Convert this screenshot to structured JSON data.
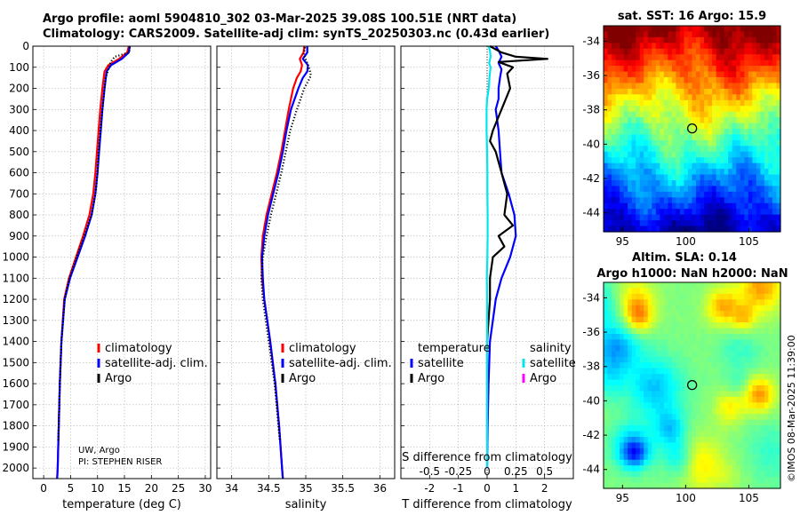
{
  "header": {
    "title_line1": "Argo profile: aoml 5904810_302 03-Mar-2025 39.08S 100.51E (NRT data)",
    "title_line2": "Climatology: CARS2009. Satellite-adj clim: synTS_20250303.nc (0.43d earlier)"
  },
  "credits": {
    "line1": "UW, Argo",
    "line2": "PI: STEPHEN RISER"
  },
  "watermark": "©IMOS 08-Mar-2025 11:39:00",
  "colors": {
    "climatology": "#ff0000",
    "satellite": "#0000ff",
    "argo": "#000000",
    "sat_salinity": "#00e5ee",
    "argo_salinity": "#ff00ff"
  },
  "chart_data": [
    {
      "type": "line",
      "name": "temperature",
      "xlabel": "temperature (deg C)",
      "ylabel": "",
      "xlim": [
        -2,
        31
      ],
      "ylim": [
        0,
        2050
      ],
      "xticks": [
        0,
        5,
        10,
        15,
        20,
        25,
        30
      ],
      "yticks": [
        0,
        100,
        200,
        300,
        400,
        500,
        600,
        700,
        800,
        900,
        1000,
        1100,
        1200,
        1300,
        1400,
        1500,
        1600,
        1700,
        1800,
        1900,
        2000
      ],
      "grid": true,
      "legend": [
        {
          "label": "climatology",
          "color": "#ff0000"
        },
        {
          "label": "satellite-adj. clim.",
          "color": "#0000ff"
        },
        {
          "label": "Argo",
          "color": "#000000"
        }
      ],
      "series": [
        {
          "name": "climatology",
          "color": "#ff0000",
          "style": "solid",
          "depth": [
            0,
            30,
            60,
            90,
            120,
            200,
            300,
            400,
            500,
            600,
            700,
            800,
            900,
            1000,
            1100,
            1200,
            1400,
            1600,
            1800,
            2000,
            2050
          ],
          "values": [
            15.8,
            15.5,
            14.0,
            12.0,
            11.3,
            10.9,
            10.5,
            10.2,
            9.9,
            9.6,
            9.2,
            8.5,
            7.3,
            6.0,
            4.7,
            3.8,
            3.3,
            3.0,
            2.8,
            2.6,
            2.5
          ]
        },
        {
          "name": "satellite-adj. clim.",
          "color": "#0000ff",
          "style": "solid",
          "depth": [
            0,
            30,
            60,
            90,
            120,
            200,
            300,
            400,
            500,
            600,
            700,
            800,
            900,
            1000,
            1100,
            1200,
            1400,
            1600,
            1800,
            2000,
            2050
          ],
          "values": [
            16.0,
            15.8,
            14.5,
            12.5,
            11.7,
            11.3,
            10.9,
            10.6,
            10.3,
            10.0,
            9.6,
            8.9,
            7.7,
            6.3,
            4.9,
            3.9,
            3.3,
            3.0,
            2.8,
            2.6,
            2.5
          ]
        },
        {
          "name": "Argo",
          "color": "#000000",
          "style": "dotted",
          "depth": [
            5,
            30,
            50,
            70,
            90,
            120,
            150,
            200,
            300,
            400,
            500,
            600,
            700,
            800,
            900,
            1000,
            1100,
            1200,
            1400,
            1600,
            1800,
            1870
          ],
          "values": [
            15.9,
            15.9,
            13.2,
            12.6,
            12.2,
            11.9,
            11.5,
            11.3,
            10.9,
            10.5,
            10.2,
            10.0,
            9.6,
            8.9,
            7.5,
            6.1,
            4.8,
            3.9,
            3.3,
            3.0,
            2.8,
            2.7
          ]
        }
      ]
    },
    {
      "type": "line",
      "name": "salinity",
      "xlabel": "salinity",
      "xlim": [
        33.8,
        36.2
      ],
      "ylim": [
        0,
        2050
      ],
      "xticks": [
        34,
        34.5,
        35,
        35.5,
        36
      ],
      "xticklabels": [
        "34",
        "34.5",
        "35",
        "35.5",
        "36"
      ],
      "grid": true,
      "legend": [
        {
          "label": "climatology",
          "color": "#ff0000"
        },
        {
          "label": "satellite-adj. clim.",
          "color": "#0000ff"
        },
        {
          "label": "Argo",
          "color": "#000000"
        }
      ],
      "series": [
        {
          "name": "climatology",
          "color": "#ff0000",
          "style": "solid",
          "depth": [
            0,
            30,
            60,
            90,
            120,
            150,
            200,
            300,
            400,
            500,
            600,
            700,
            800,
            900,
            1000,
            1100,
            1200,
            1400,
            1600,
            1800,
            2000,
            2050
          ],
          "values": [
            34.98,
            34.97,
            34.92,
            34.95,
            34.93,
            34.88,
            34.83,
            34.77,
            34.72,
            34.67,
            34.61,
            34.54,
            34.47,
            34.42,
            34.4,
            34.41,
            34.44,
            34.52,
            34.59,
            34.64,
            34.68,
            34.69
          ]
        },
        {
          "name": "satellite-adj. clim.",
          "color": "#0000ff",
          "style": "solid",
          "depth": [
            0,
            30,
            60,
            90,
            120,
            150,
            200,
            300,
            400,
            500,
            600,
            700,
            800,
            900,
            1000,
            1100,
            1200,
            1400,
            1600,
            1800,
            2000,
            2050
          ],
          "values": [
            35.02,
            35.02,
            34.96,
            35.03,
            35.02,
            34.96,
            34.9,
            34.8,
            34.74,
            34.69,
            34.63,
            34.56,
            34.49,
            34.44,
            34.41,
            34.42,
            34.44,
            34.52,
            34.59,
            34.64,
            34.68,
            34.69
          ]
        },
        {
          "name": "Argo",
          "color": "#000000",
          "style": "dotted",
          "depth": [
            5,
            40,
            80,
            110,
            140,
            200,
            300,
            400,
            500,
            600,
            700,
            800,
            900,
            1000,
            1100,
            1200,
            1400,
            1600,
            1800,
            1870
          ],
          "values": [
            34.99,
            34.97,
            35.02,
            35.05,
            35.07,
            34.98,
            34.88,
            34.79,
            34.73,
            34.67,
            34.6,
            34.53,
            34.47,
            34.42,
            34.4,
            34.42,
            34.5,
            34.58,
            34.63,
            34.65
          ]
        }
      ]
    },
    {
      "type": "line",
      "name": "differences",
      "xlabel": "T difference from climatology",
      "top_label": "S difference from climatology",
      "xlim": [
        -3.0,
        3.0
      ],
      "ylim": [
        0,
        2050
      ],
      "xticks": [
        -2,
        -1,
        0,
        1,
        2
      ],
      "xticklabels": [
        "-2",
        "-1",
        "0",
        "1",
        "2"
      ],
      "top_ticks": [
        -0.5,
        -0.25,
        0,
        0.25,
        0.5
      ],
      "top_ticklabels": [
        "-0.5",
        "-0.25",
        "0",
        "0.25",
        "0.5"
      ],
      "grid": true,
      "legend_temperature_title": "temperature",
      "legend_salinity_title": "salinity",
      "legend_temperature": [
        {
          "label": "satellite",
          "color": "#0000ff"
        },
        {
          "label": "Argo",
          "color": "#000000"
        }
      ],
      "legend_salinity": [
        {
          "label": "satellite",
          "color": "#00e5ee"
        },
        {
          "label": "Argo",
          "color": "#ff00ff"
        }
      ],
      "series": [
        {
          "name": "temperature satellite",
          "color": "#0000ff",
          "style": "solid",
          "depth": [
            0,
            20,
            50,
            80,
            110,
            150,
            200,
            250,
            300,
            350,
            400,
            500,
            600,
            700,
            800,
            900,
            1000,
            1100,
            1200,
            1300,
            1400,
            1600,
            1800,
            2000
          ],
          "values": [
            0.3,
            0.4,
            0.5,
            0.4,
            0.5,
            0.45,
            0.4,
            0.4,
            0.3,
            0.35,
            0.4,
            0.45,
            0.5,
            0.75,
            0.95,
            1.0,
            0.8,
            0.5,
            0.3,
            0.2,
            0.1,
            0.05,
            0.02,
            0.0
          ]
        },
        {
          "name": "temperature Argo",
          "color": "#000000",
          "style": "solid",
          "depth": [
            0,
            30,
            50,
            60,
            75,
            100,
            130,
            200,
            300,
            400,
            450,
            500,
            600,
            700,
            800,
            850,
            900,
            950,
            1000,
            1100,
            1200,
            1300,
            1400,
            1600,
            1800,
            1870
          ],
          "values": [
            0.1,
            0.5,
            1.0,
            2.1,
            0.4,
            0.9,
            0.7,
            0.8,
            0.5,
            0.2,
            0.1,
            0.3,
            0.5,
            0.7,
            0.6,
            0.9,
            0.4,
            0.6,
            0.2,
            0.1,
            0.1,
            0.05,
            0.0,
            0.0,
            0.0,
            0.0
          ]
        },
        {
          "name": "salinity satellite",
          "color": "#00e5ee",
          "style": "solid",
          "depth": [
            0,
            20,
            50,
            80,
            100,
            150,
            200,
            250,
            300,
            400,
            500,
            600,
            700,
            800,
            900,
            1000,
            1100,
            1200,
            1400,
            1600,
            1800,
            2000
          ],
          "values": [
            0.05,
            0.1,
            0.12,
            0.07,
            0.12,
            0.08,
            0.06,
            0.0,
            -0.02,
            -0.02,
            0.0,
            0.01,
            0.01,
            0.02,
            0.02,
            0.01,
            -0.01,
            0.0,
            0.0,
            0.0,
            0.0,
            0.0
          ]
        }
      ]
    }
  ],
  "maps": {
    "sst": {
      "title": "sat. SST: 16 Argo: 15.9",
      "xticks": [
        95,
        100,
        105
      ],
      "xticklabels": [
        "95",
        "100",
        "105"
      ],
      "yticks": [
        -34,
        -36,
        -38,
        -40,
        -42,
        -44
      ],
      "yticklabels": [
        "-34",
        "-36",
        "-38",
        "-40",
        "-42",
        "-44"
      ],
      "lon_range": [
        93.5,
        107.5
      ],
      "lat_range": [
        -45.1,
        -33.1
      ],
      "marker": {
        "lon": 100.51,
        "lat": -39.08
      }
    },
    "sla": {
      "title_line1": "Altim. SLA: 0.14",
      "title_line2": "Argo h1000: NaN h2000: NaN",
      "xticks": [
        95,
        100,
        105
      ],
      "xticklabels": [
        "95",
        "100",
        "105"
      ],
      "yticks": [
        -34,
        -36,
        -38,
        -40,
        -42,
        -44
      ],
      "yticklabels": [
        "-34",
        "-36",
        "-38",
        "-40",
        "-42",
        "-44"
      ],
      "lon_range": [
        93.5,
        107.5
      ],
      "lat_range": [
        -45.1,
        -33.1
      ],
      "marker": {
        "lon": 100.51,
        "lat": -39.08
      }
    }
  }
}
